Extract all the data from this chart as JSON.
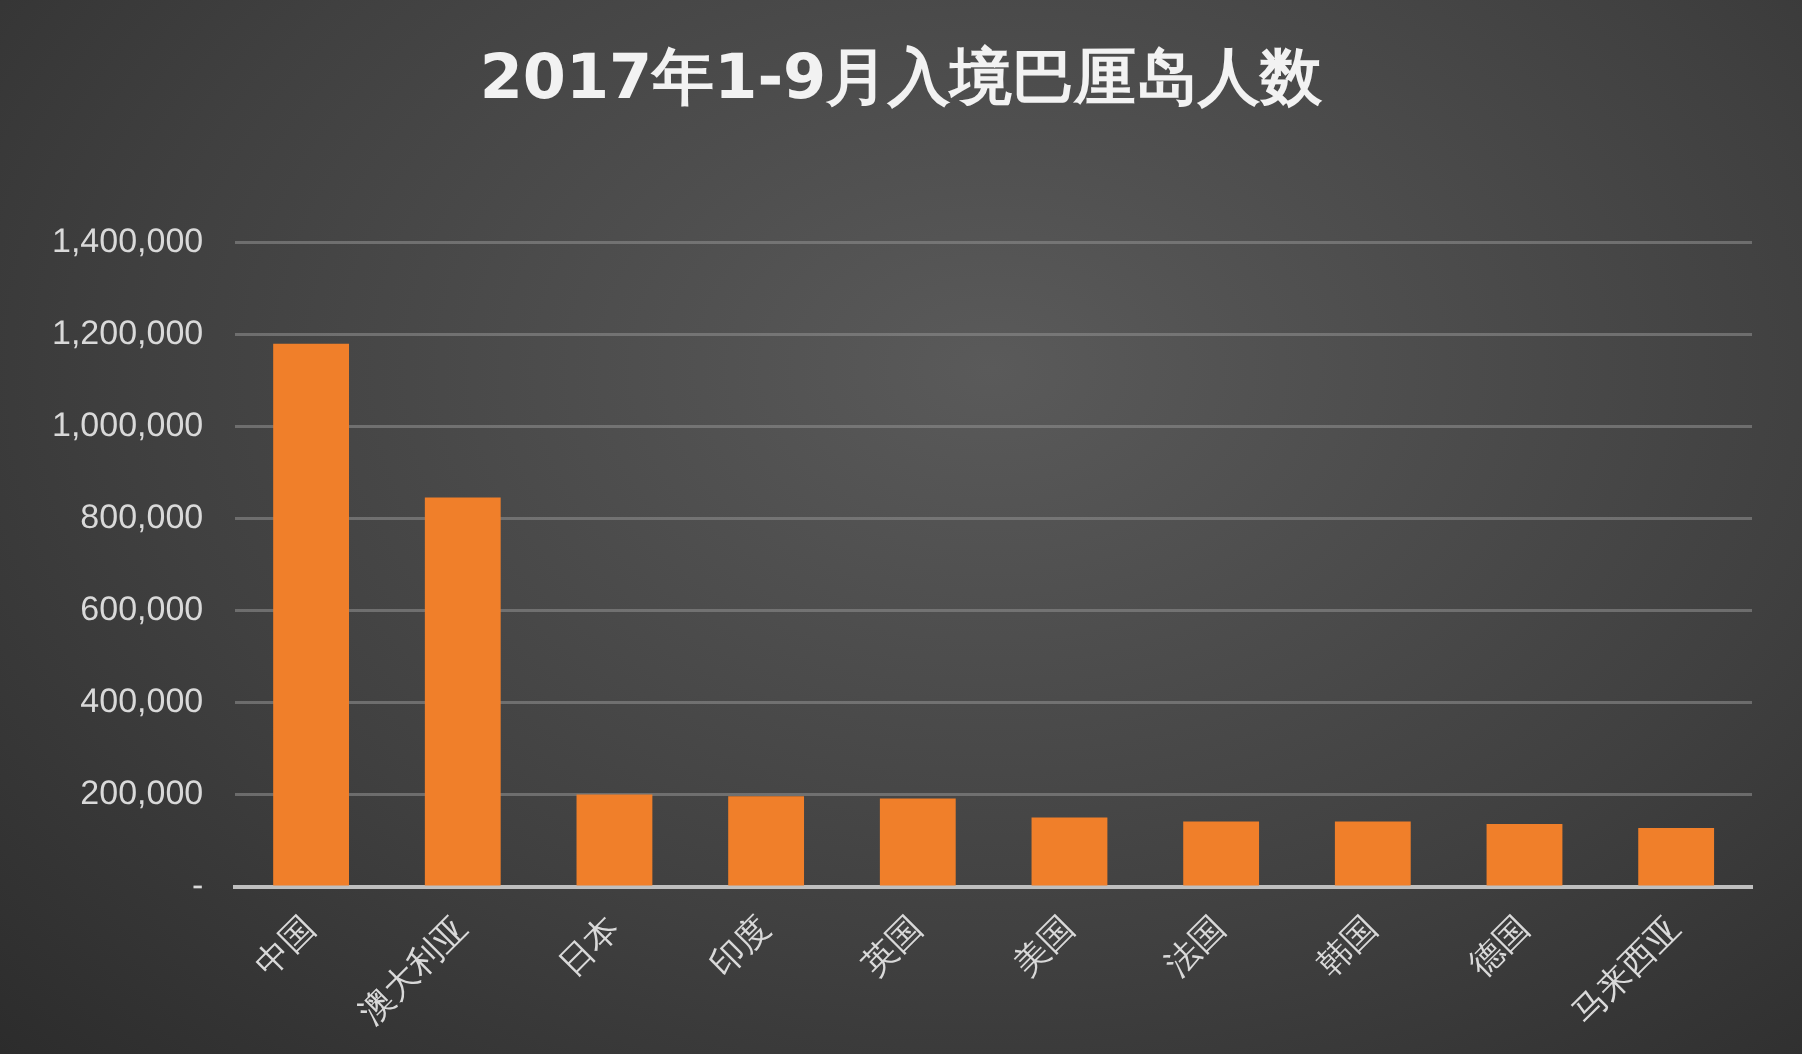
{
  "chart_data": {
    "type": "bar",
    "title": "2017年1-9月入境巴厘岛人数",
    "categories": [
      "中国",
      "澳大利亚",
      "日本",
      "印度",
      "英国",
      "美国",
      "法国",
      "韩国",
      "德国",
      "马来西亚"
    ],
    "values": [
      1180000,
      846000,
      201000,
      197000,
      192000,
      151000,
      142000,
      142000,
      137000,
      128000
    ],
    "color": "#f07f2a",
    "ylim": [
      0,
      1400000
    ],
    "yticks": [
      {
        "value": 0,
        "label": "-"
      },
      {
        "value": 200000,
        "label": "200,000"
      },
      {
        "value": 400000,
        "label": "400,000"
      },
      {
        "value": 600000,
        "label": "600,000"
      },
      {
        "value": 800000,
        "label": "800,000"
      },
      {
        "value": 1000000,
        "label": "1,000,000"
      },
      {
        "value": 1200000,
        "label": "1,200,000"
      },
      {
        "value": 1400000,
        "label": "1,400,000"
      }
    ],
    "grid": "y",
    "legend": false
  }
}
